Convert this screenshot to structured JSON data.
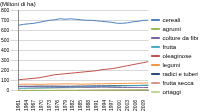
{
  "chart_data": {
    "type": "line",
    "title": "(Milioni di ha)",
    "x": [
      1961,
      1963,
      1965,
      1967,
      1969,
      1971,
      1973,
      1975,
      1977,
      1979,
      1981,
      1983,
      1985,
      1987,
      1989,
      1991,
      1993,
      1995,
      1997,
      1999,
      2001,
      2003,
      2005,
      2007,
      2009,
      2011
    ],
    "xlim": [
      1961,
      2011
    ],
    "xticks": [
      1961,
      1964,
      1967,
      1970,
      1973,
      1976,
      1979,
      1982,
      1985,
      1988,
      1991,
      1994,
      1997,
      2000,
      2003,
      2006,
      2009
    ],
    "ylim": [
      0,
      800
    ],
    "yticks": [
      0,
      100,
      200,
      300,
      400,
      500,
      600,
      700,
      800
    ],
    "grid": true,
    "legend": "right",
    "series": [
      {
        "name": "cereali",
        "color": "#4f81bd",
        "values": [
          650,
          660,
          665,
          670,
          680,
          690,
          700,
          705,
          715,
          710,
          715,
          710,
          705,
          700,
          700,
          695,
          690,
          685,
          680,
          670,
          670,
          675,
          685,
          690,
          700,
          700
        ]
      },
      {
        "name": "agrumi",
        "color": "#9bbb59",
        "values": [
          2,
          2,
          3,
          3,
          3,
          3,
          3,
          4,
          4,
          4,
          4,
          4,
          5,
          5,
          6,
          6,
          7,
          7,
          7,
          7,
          8,
          8,
          8,
          9,
          9,
          9
        ]
      },
      {
        "name": "colture da fibra",
        "color": "#8064a2",
        "values": [
          42,
          42,
          41,
          41,
          40,
          40,
          39,
          39,
          38,
          38,
          39,
          39,
          38,
          36,
          35,
          36,
          37,
          36,
          35,
          34,
          33,
          34,
          34,
          35,
          34,
          33
        ]
      },
      {
        "name": "frutta",
        "color": "#4bacc6",
        "values": [
          25,
          26,
          27,
          28,
          29,
          30,
          31,
          32,
          33,
          34,
          35,
          37,
          38,
          40,
          41,
          43,
          44,
          46,
          47,
          48,
          50,
          51,
          52,
          53,
          54,
          55
        ]
      },
      {
        "name": "oleaginose",
        "color": "#c0504d",
        "values": [
          110,
          115,
          120,
          125,
          130,
          140,
          150,
          160,
          165,
          170,
          175,
          180,
          185,
          190,
          195,
          200,
          210,
          215,
          220,
          230,
          240,
          250,
          260,
          270,
          280,
          290
        ]
      },
      {
        "name": "legumi",
        "color": "#f79646",
        "values": [
          65,
          66,
          67,
          65,
          64,
          66,
          67,
          68,
          68,
          70,
          70,
          68,
          66,
          67,
          68,
          70,
          70,
          72,
          72,
          73,
          74,
          75,
          76,
          77,
          78,
          79
        ]
      },
      {
        "name": "radici e tuberi",
        "color": "#2c4d75",
        "values": [
          45,
          46,
          46,
          46,
          47,
          47,
          47,
          47,
          46,
          46,
          46,
          47,
          47,
          48,
          49,
          50,
          50,
          51,
          52,
          52,
          53,
          53,
          54,
          54,
          55,
          55
        ]
      },
      {
        "name": "frutta secca",
        "color": "#d99694",
        "values": [
          4,
          4,
          4,
          5,
          5,
          5,
          5,
          5,
          6,
          6,
          6,
          6,
          7,
          7,
          7,
          8,
          8,
          8,
          9,
          9,
          9,
          10,
          10,
          10,
          11,
          11
        ]
      },
      {
        "name": "ortaggi",
        "color": "#c3d69b",
        "values": [
          20,
          21,
          22,
          23,
          24,
          25,
          26,
          27,
          28,
          29,
          30,
          32,
          34,
          36,
          38,
          40,
          42,
          44,
          46,
          48,
          50,
          51,
          52,
          53,
          54,
          55
        ]
      }
    ]
  }
}
